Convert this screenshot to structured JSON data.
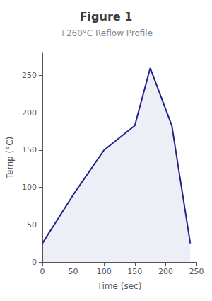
{
  "chart_data": {
    "type": "line",
    "title": "Figure 1",
    "subtitle": "+260°C Reflow Profile",
    "x": [
      0,
      50,
      100,
      150,
      175,
      210,
      240
    ],
    "values": [
      25,
      90,
      150,
      183,
      260,
      183,
      25
    ],
    "color": "#222288",
    "xlabel": "Time (sec)",
    "ylabel": "Temp (°C)",
    "xlim": [
      0,
      250
    ],
    "ylim": [
      0,
      280
    ],
    "xticks": [
      0,
      50,
      100,
      150,
      200,
      250
    ],
    "yticks": [
      0,
      50,
      100,
      150,
      200,
      250
    ],
    "grid": false
  }
}
